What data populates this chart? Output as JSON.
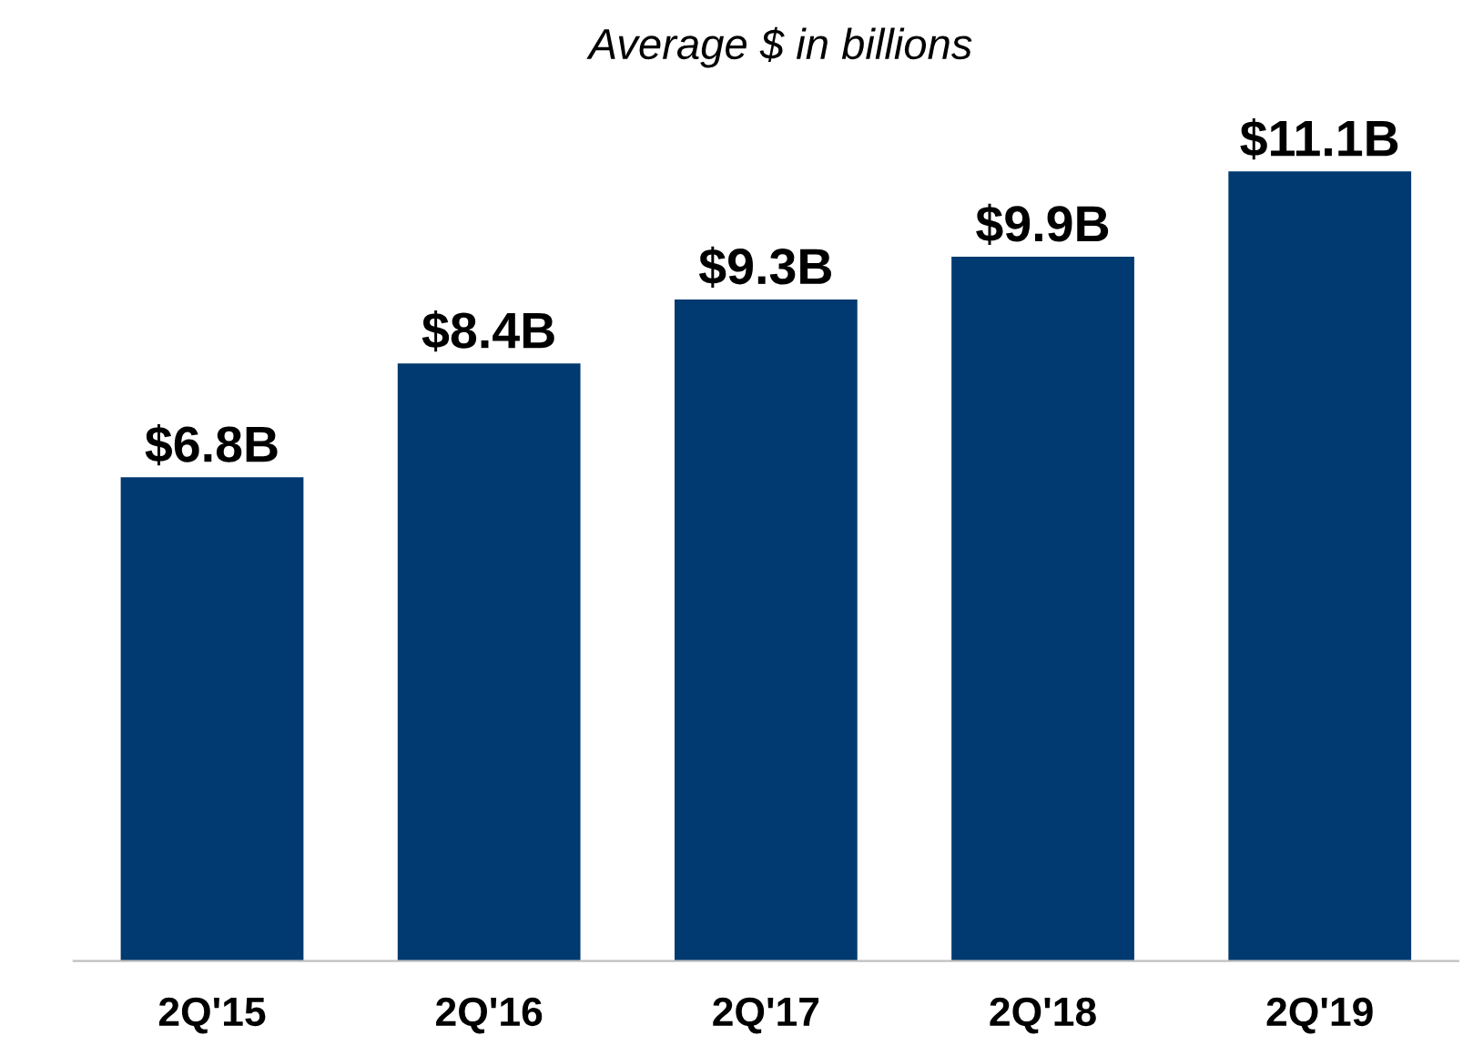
{
  "chart_data": {
    "type": "bar",
    "title": "Average $ in billions",
    "categories": [
      "2Q'15",
      "2Q'16",
      "2Q'17",
      "2Q'18",
      "2Q'19"
    ],
    "values": [
      6.8,
      8.4,
      9.3,
      9.9,
      11.1
    ],
    "value_labels": [
      "$6.8B",
      "$8.4B",
      "$9.3B",
      "$9.9B",
      "$11.1B"
    ],
    "color": "#003a70",
    "grid": false,
    "legend": false,
    "tick_labels": "x"
  }
}
